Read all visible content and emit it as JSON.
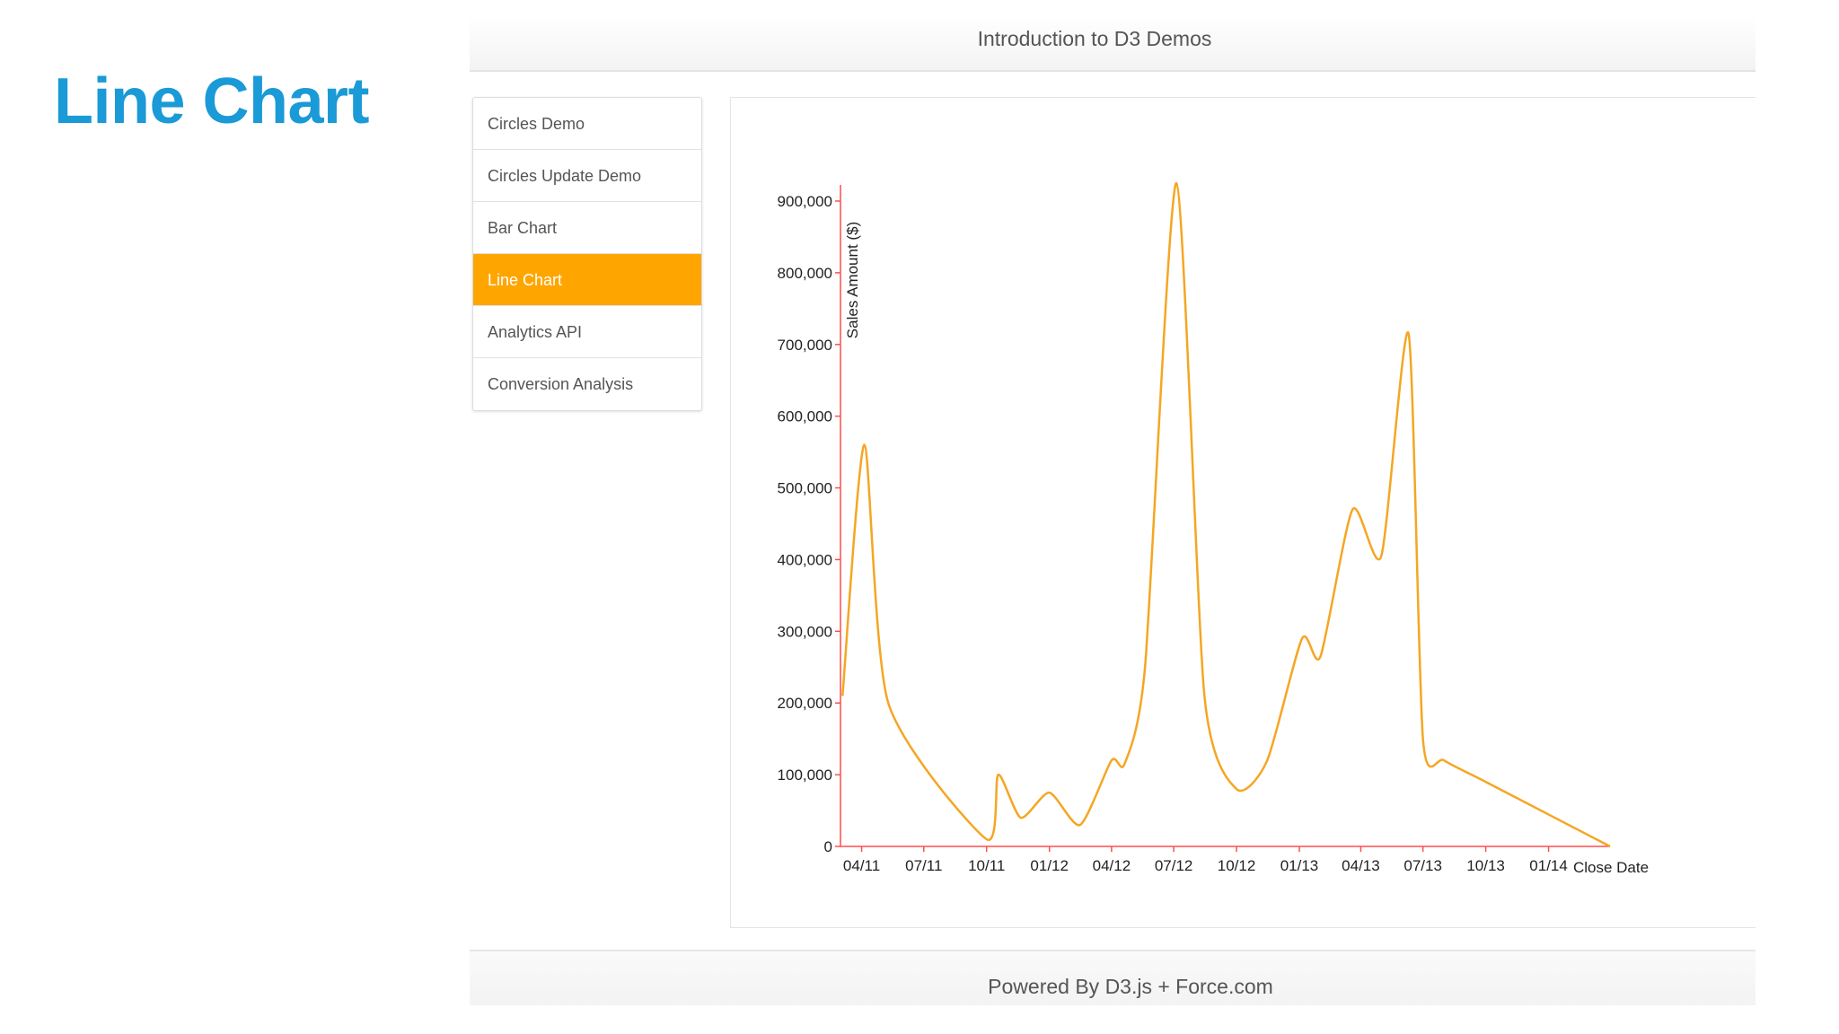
{
  "slide": {
    "title": "Line Chart"
  },
  "header": {
    "title": "Introduction to D3 Demos"
  },
  "nav": {
    "items": [
      {
        "label": "Circles Demo",
        "active": false
      },
      {
        "label": "Circles Update Demo",
        "active": false
      },
      {
        "label": "Bar Chart",
        "active": false
      },
      {
        "label": "Line Chart",
        "active": true
      },
      {
        "label": "Analytics API",
        "active": false
      },
      {
        "label": "Conversion Analysis",
        "active": false
      }
    ]
  },
  "footer": {
    "text": "Powered By D3.js + Force.com"
  },
  "colors": {
    "accent": "#ffa500",
    "title": "#1a9ad6",
    "axis": "#ff4d4d",
    "line": "#f5a623"
  },
  "chart_data": {
    "type": "line",
    "title": "",
    "xlabel": "Close Date",
    "ylabel": "Sales Amount ($)",
    "ylim": [
      0,
      900000
    ],
    "xlim": [
      "2011-03",
      "2014-04"
    ],
    "yticks": [
      0,
      100000,
      200000,
      300000,
      400000,
      500000,
      600000,
      700000,
      800000,
      900000
    ],
    "ytick_labels": [
      "0",
      "100,000",
      "200,000",
      "300,000",
      "400,000",
      "500,000",
      "600,000",
      "700,000",
      "800,000",
      "900,000"
    ],
    "xticks": [
      "2011-04",
      "2011-07",
      "2011-10",
      "2012-01",
      "2012-04",
      "2012-07",
      "2012-10",
      "2013-01",
      "2013-04",
      "2013-07",
      "2013-10",
      "2014-01"
    ],
    "xtick_labels": [
      "04/11",
      "07/11",
      "10/11",
      "01/12",
      "04/12",
      "07/12",
      "10/12",
      "01/13",
      "04/13",
      "07/13",
      "10/13",
      "01/14"
    ],
    "grid": false,
    "series": [
      {
        "x": [
          "2011-03-04",
          "2011-04-05",
          "2011-05-10",
          "2011-10-01",
          "2011-10-18",
          "2011-11-20",
          "2012-01-01",
          "2012-02-15",
          "2012-04-01",
          "2012-04-20",
          "2012-05-20",
          "2012-07-05",
          "2012-08-15",
          "2012-10-01",
          "2012-11-15",
          "2013-01-05",
          "2013-02-01",
          "2013-03-20",
          "2013-05-01",
          "2013-06-10",
          "2013-07-01",
          "2013-08-01",
          "2013-10-01",
          "2014-04-01"
        ],
        "y": [
          210000,
          560000,
          200000,
          10000,
          100000,
          40000,
          75000,
          30000,
          120000,
          115000,
          250000,
          925000,
          210000,
          80000,
          120000,
          290000,
          265000,
          470000,
          405000,
          715000,
          150000,
          120000,
          90000,
          0
        ]
      }
    ]
  }
}
